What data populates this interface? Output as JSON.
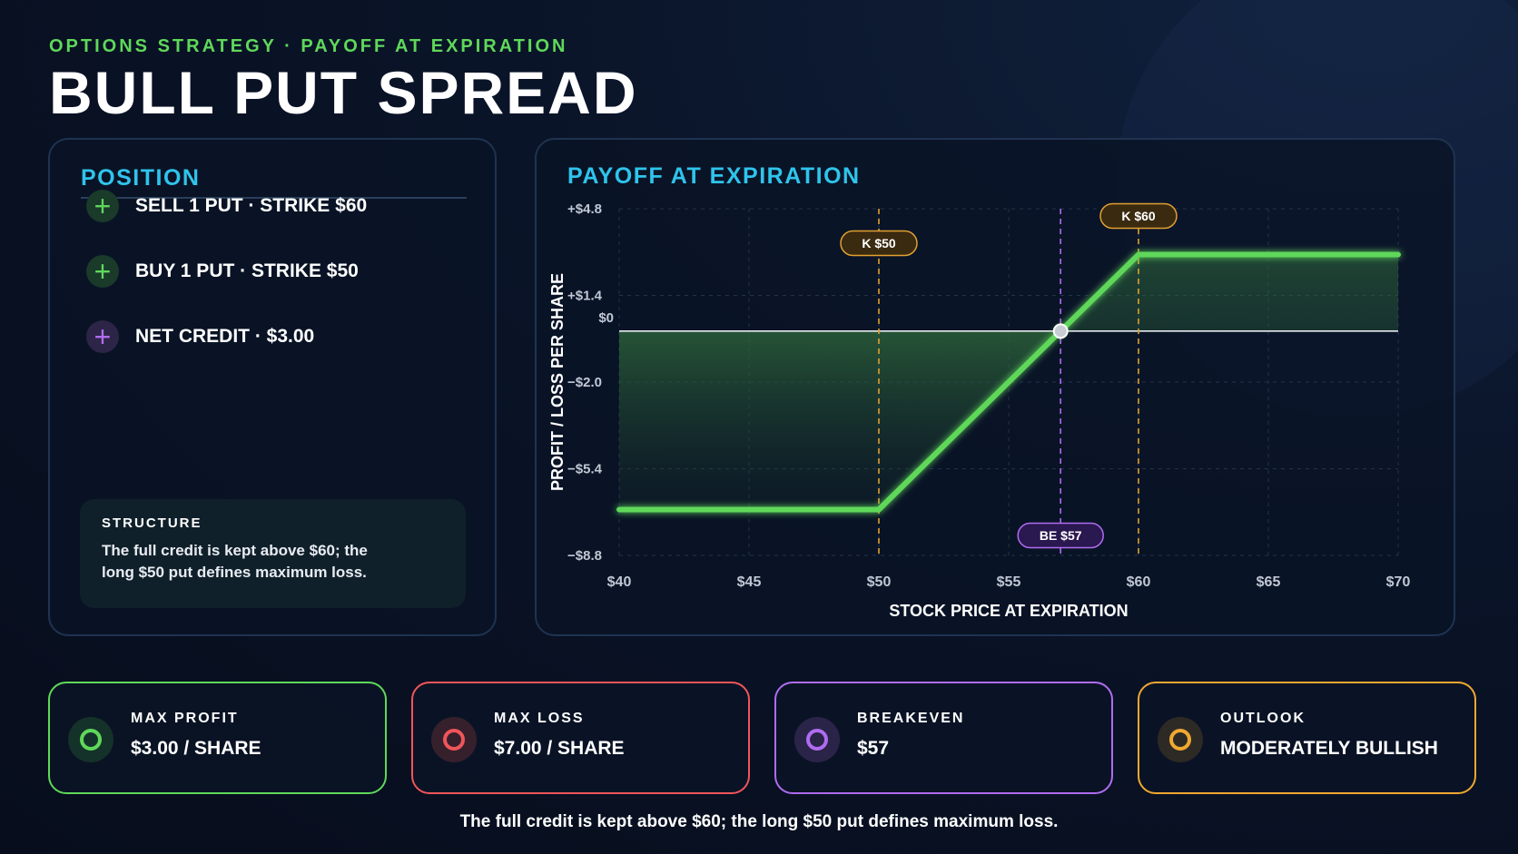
{
  "header": {
    "eyebrow": "OPTIONS STRATEGY · PAYOFF AT EXPIRATION",
    "title": "BULL PUT SPREAD"
  },
  "position": {
    "heading": "POSITION",
    "legs": [
      {
        "icon": "plus-icon",
        "color": "#5fd85a",
        "label": "SELL 1 PUT · STRIKE $60"
      },
      {
        "icon": "plus-icon",
        "color": "#5fd85a",
        "label": "BUY 1 PUT · STRIKE $50"
      },
      {
        "icon": "plus-icon",
        "color": "#b06cf0",
        "label": "NET CREDIT · $3.00"
      }
    ],
    "structure": {
      "title": "STRUCTURE",
      "text": "The full credit is kept above $60; the long $50 put defines maximum loss."
    }
  },
  "chart_panel": {
    "heading": "PAYOFF AT EXPIRATION"
  },
  "chart_data": {
    "type": "line",
    "xlabel": "STOCK PRICE AT EXPIRATION",
    "ylabel": "PROFIT / LOSS PER SHARE",
    "xlim": [
      40,
      70
    ],
    "ylim": [
      -8.8,
      4.8
    ],
    "x_ticks": [
      40,
      45,
      50,
      55,
      60,
      65,
      70
    ],
    "x_tick_labels": [
      "$40",
      "$45",
      "$50",
      "$55",
      "$60",
      "$65",
      "$70"
    ],
    "y_ticks": [
      4.8,
      1.4,
      -2.0,
      -5.4,
      -8.8
    ],
    "y_tick_labels": [
      "+$4.8",
      "+$1.4",
      "−$2.0",
      "−$5.4",
      "−$8.8"
    ],
    "zero_label": "$0",
    "grid": true,
    "series": [
      {
        "x": [
          40,
          50,
          60,
          70
        ],
        "y": [
          -7,
          -7,
          3,
          3
        ],
        "color": "#5fd85a"
      }
    ],
    "markers": [
      {
        "x": 50,
        "label": "K $50",
        "color": "#e0a030"
      },
      {
        "x": 60,
        "label": "K $60",
        "color": "#e0a030"
      },
      {
        "x": 57,
        "label": "BE $57",
        "color": "#b06cf0"
      }
    ]
  },
  "stats": [
    {
      "label": "MAX PROFIT",
      "value": "$3.00 / SHARE",
      "color": "#5fd85a",
      "bg": "#15322a"
    },
    {
      "label": "MAX LOSS",
      "value": "$7.00 / SHARE",
      "color": "#f0555a",
      "bg": "#35202c"
    },
    {
      "label": "BREAKEVEN",
      "value": "$57",
      "color": "#b06cf0",
      "bg": "#2a2448"
    },
    {
      "label": "OUTLOOK",
      "value": "MODERATELY BULLISH",
      "color": "#f0a830",
      "bg": "#2d2a26"
    }
  ],
  "footer": "The full credit is kept above $60; the long $50 put defines maximum loss."
}
